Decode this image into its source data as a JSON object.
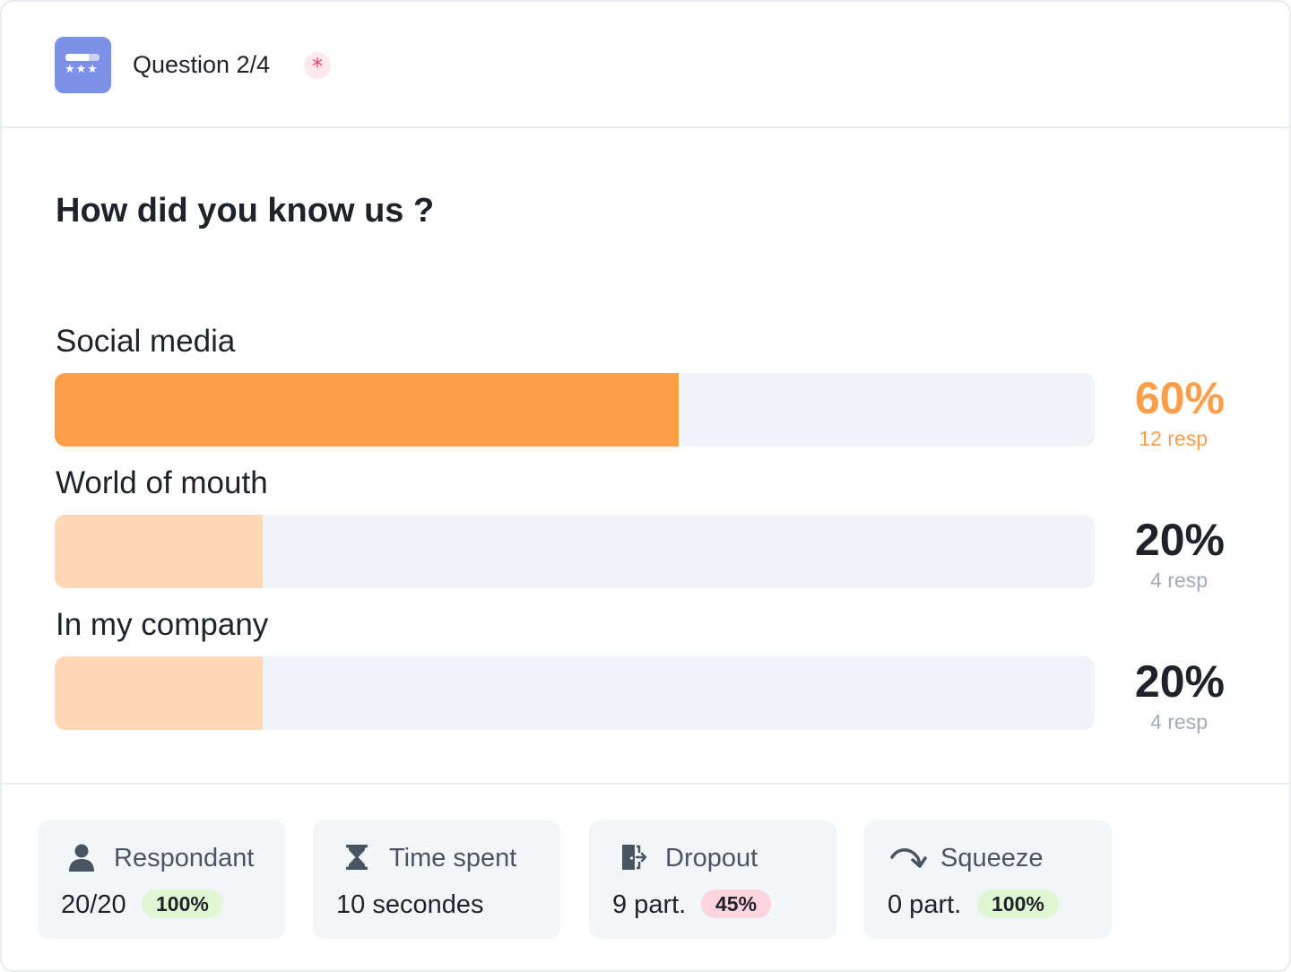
{
  "header": {
    "title": "Question 2/4",
    "required_mark": "*",
    "icon_name": "rating-question-icon",
    "icon_stars": "★★★"
  },
  "question": {
    "title": "How did you know us ?"
  },
  "options": [
    {
      "label": "Social media",
      "percent_label": "60%",
      "responses_label": "12 resp",
      "value": 60,
      "highlighted": true
    },
    {
      "label": "World of mouth",
      "percent_label": "20%",
      "responses_label": "4 resp",
      "value": 20,
      "highlighted": false
    },
    {
      "label": "In my company",
      "percent_label": "20%",
      "responses_label": "4 resp",
      "value": 20,
      "highlighted": false
    }
  ],
  "colors": {
    "accent": "#ff9e4a",
    "accent_light": "#ffd8b8",
    "track": "#f0f3f7",
    "text_dark": "#1f2329",
    "text_muted": "#a3adba",
    "badge_green": "#e1f6d2",
    "badge_pink": "#fdd3df"
  },
  "stats": [
    {
      "label": "Respondant",
      "value": "20/20",
      "badge": "100%",
      "icon": "person-icon"
    },
    {
      "label": "Time spent",
      "value": "10 secondes",
      "badge": "",
      "icon": "hourglass-icon"
    },
    {
      "label": "Dropout",
      "value": "9 part.",
      "badge": "45%",
      "icon": "exit-door-icon"
    },
    {
      "label": "Squeeze",
      "value": "0 part.",
      "badge": "100%",
      "icon": "curved-arrow-icon"
    }
  ]
}
